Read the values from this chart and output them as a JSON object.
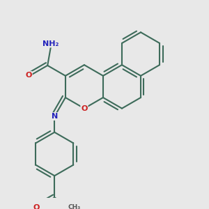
{
  "bg": "#e8e8e8",
  "bc": "#3d6b5a",
  "bw": 1.5,
  "N_col": "#2222bb",
  "O_col": "#cc2020",
  "H_col": "#555555",
  "fs": 7.0,
  "xlim": [
    0.0,
    3.0
  ],
  "ylim": [
    0.0,
    3.0
  ]
}
